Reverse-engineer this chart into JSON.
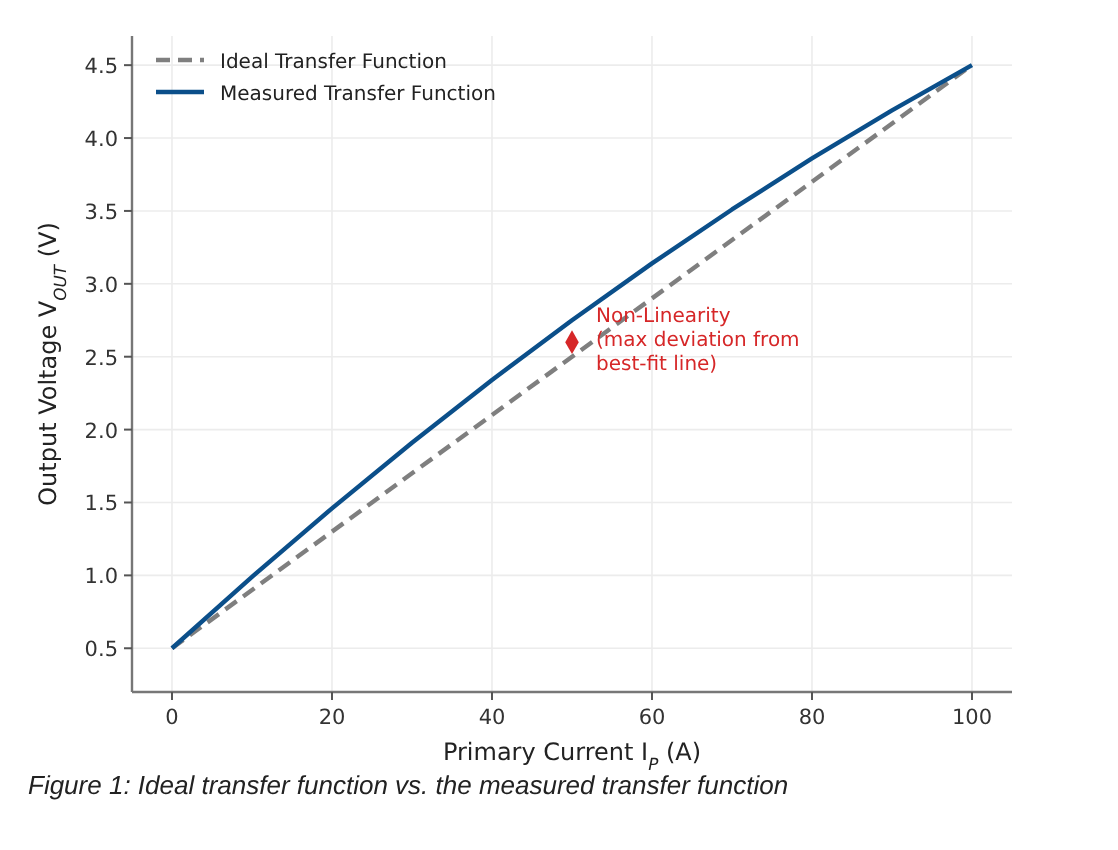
{
  "chart_data": {
    "type": "line",
    "xlabel": "Primary Current I$_{P}$ (A)",
    "ylabel": "Output Voltage V$_{OUT}$ (V)",
    "xlim": [
      -5,
      105
    ],
    "ylim": [
      0.2,
      4.7
    ],
    "xticks": [
      0,
      20,
      40,
      60,
      80,
      100
    ],
    "yticks": [
      {
        "value": 0.5,
        "label": "0.5"
      },
      {
        "value": 1,
        "label": "1.0"
      },
      {
        "value": 1.5,
        "label": "1.5"
      },
      {
        "value": 2,
        "label": "2.0"
      },
      {
        "value": 2.5,
        "label": "2.5"
      },
      {
        "value": 3,
        "label": "3.0"
      },
      {
        "value": 3.5,
        "label": "3.5"
      },
      {
        "value": 4,
        "label": "4.0"
      },
      {
        "value": 4.5,
        "label": "4.5"
      }
    ],
    "grid": true,
    "legend": "top left",
    "marker": "none",
    "series": [
      {
        "name": "Ideal Transfer Function",
        "color": "#7f7f7f",
        "line_style": "dashed",
        "x": [
          0,
          100
        ],
        "values": [
          0.5,
          4.5
        ]
      },
      {
        "name": "Measured Transfer Function",
        "color": "#0b4f8a",
        "line_style": "solid",
        "x": [
          0,
          10,
          20,
          30,
          40,
          50,
          60,
          70,
          80,
          90,
          100
        ],
        "values": [
          0.5,
          0.99,
          1.46,
          1.91,
          2.34,
          2.75,
          3.14,
          3.51,
          3.86,
          4.19,
          4.5
        ]
      },
      {
        "type": "scatter",
        "color": "#d62728",
        "marker": "diamond",
        "x": [
          50
        ],
        "values": [
          2.6
        ]
      }
    ],
    "annotations": [
      {
        "text": "Non-Linearity\n(max deviation from\nbest-fit line)",
        "x": 50,
        "y": 2.6
      },
      "Figure 1: Ideal transfer function vs. the measured transfer function"
    ]
  }
}
